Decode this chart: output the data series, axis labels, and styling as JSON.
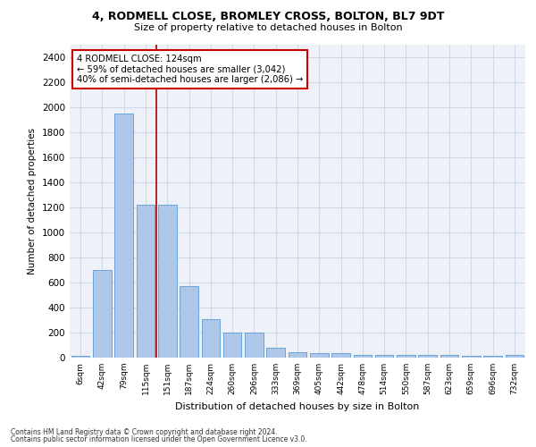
{
  "title1": "4, RODMELL CLOSE, BROMLEY CROSS, BOLTON, BL7 9DT",
  "title2": "Size of property relative to detached houses in Bolton",
  "xlabel": "Distribution of detached houses by size in Bolton",
  "ylabel": "Number of detached properties",
  "footer1": "Contains HM Land Registry data © Crown copyright and database right 2024.",
  "footer2": "Contains public sector information licensed under the Open Government Licence v3.0.",
  "bar_labels": [
    "6sqm",
    "42sqm",
    "79sqm",
    "115sqm",
    "151sqm",
    "187sqm",
    "224sqm",
    "260sqm",
    "296sqm",
    "333sqm",
    "369sqm",
    "405sqm",
    "442sqm",
    "478sqm",
    "514sqm",
    "550sqm",
    "587sqm",
    "623sqm",
    "659sqm",
    "696sqm",
    "732sqm"
  ],
  "bar_values": [
    15,
    700,
    1950,
    1220,
    1220,
    570,
    305,
    200,
    200,
    80,
    45,
    38,
    38,
    20,
    20,
    20,
    20,
    20,
    13,
    13,
    20
  ],
  "bar_color": "#aec6e8",
  "bar_edge_color": "#5b9bd5",
  "grid_color": "#d0d8e8",
  "vline_x": 3.5,
  "vline_color": "#aa0000",
  "annotation_text": "4 RODMELL CLOSE: 124sqm\n← 59% of detached houses are smaller (3,042)\n40% of semi-detached houses are larger (2,086) →",
  "annotation_box_color": "#ffffff",
  "annotation_box_edge": "#cc0000",
  "ylim": [
    0,
    2500
  ],
  "yticks": [
    0,
    200,
    400,
    600,
    800,
    1000,
    1200,
    1400,
    1600,
    1800,
    2000,
    2200,
    2400
  ],
  "background_color": "#eef2f8",
  "fig_background": "#ffffff"
}
